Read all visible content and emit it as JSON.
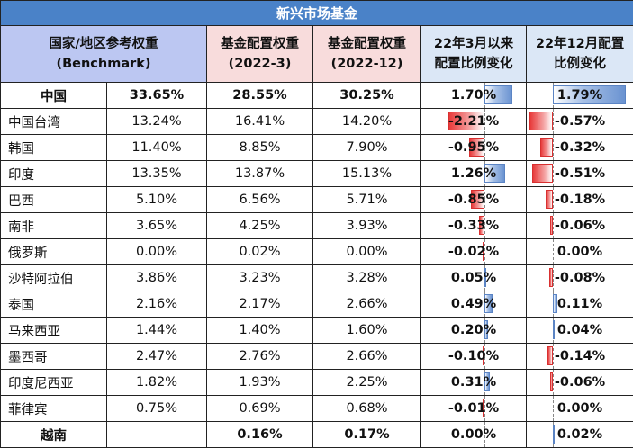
{
  "title": "新兴市场基金",
  "headers": {
    "benchmark": [
      "国家/地区参考权重",
      "(Benchmark)"
    ],
    "w2022_3": [
      "基金配置权重",
      "(2022-3)"
    ],
    "w2022_12": [
      "基金配置权重",
      "(2022-12)"
    ],
    "chg_mar": [
      "22年3月以来",
      "配置比例变化"
    ],
    "chg_dec": [
      "22年12月配置",
      "比例变化"
    ]
  },
  "rows": [
    {
      "country": "中国",
      "benchmark": "33.65%",
      "w2022_3": "28.55%",
      "w2022_12": "30.25%",
      "chg_mar": "1.70%",
      "chg_mar_v": 1.7,
      "chg_dec": "1.79%",
      "chg_dec_v": 1.79,
      "bold": true
    },
    {
      "country": "中国台湾",
      "benchmark": "13.24%",
      "w2022_3": "16.41%",
      "w2022_12": "14.20%",
      "chg_mar": "-2.21%",
      "chg_mar_v": -2.21,
      "chg_dec": "-0.57%",
      "chg_dec_v": -0.57
    },
    {
      "country": "韩国",
      "benchmark": "11.40%",
      "w2022_3": "8.85%",
      "w2022_12": "7.90%",
      "chg_mar": "-0.95%",
      "chg_mar_v": -0.95,
      "chg_dec": "-0.32%",
      "chg_dec_v": -0.32
    },
    {
      "country": "印度",
      "benchmark": "13.35%",
      "w2022_3": "13.87%",
      "w2022_12": "15.13%",
      "chg_mar": "1.26%",
      "chg_mar_v": 1.26,
      "chg_dec": "-0.51%",
      "chg_dec_v": -0.51
    },
    {
      "country": "巴西",
      "benchmark": "5.10%",
      "w2022_3": "6.56%",
      "w2022_12": "5.71%",
      "chg_mar": "-0.85%",
      "chg_mar_v": -0.85,
      "chg_dec": "-0.18%",
      "chg_dec_v": -0.18
    },
    {
      "country": "南非",
      "benchmark": "3.65%",
      "w2022_3": "4.25%",
      "w2022_12": "3.93%",
      "chg_mar": "-0.33%",
      "chg_mar_v": -0.33,
      "chg_dec": "-0.06%",
      "chg_dec_v": -0.06
    },
    {
      "country": "俄罗斯",
      "benchmark": "0.00%",
      "w2022_3": "0.02%",
      "w2022_12": "0.00%",
      "chg_mar": "-0.02%",
      "chg_mar_v": -0.02,
      "chg_dec": "0.00%",
      "chg_dec_v": 0.0
    },
    {
      "country": "沙特阿拉伯",
      "benchmark": "3.86%",
      "w2022_3": "3.23%",
      "w2022_12": "3.28%",
      "chg_mar": "0.05%",
      "chg_mar_v": 0.05,
      "chg_dec": "-0.08%",
      "chg_dec_v": -0.08
    },
    {
      "country": "泰国",
      "benchmark": "2.16%",
      "w2022_3": "2.17%",
      "w2022_12": "2.66%",
      "chg_mar": "0.49%",
      "chg_mar_v": 0.49,
      "chg_dec": "0.11%",
      "chg_dec_v": 0.11
    },
    {
      "country": "马来西亚",
      "benchmark": "1.44%",
      "w2022_3": "1.40%",
      "w2022_12": "1.60%",
      "chg_mar": "0.20%",
      "chg_mar_v": 0.2,
      "chg_dec": "0.04%",
      "chg_dec_v": 0.04
    },
    {
      "country": "墨西哥",
      "benchmark": "2.47%",
      "w2022_3": "2.76%",
      "w2022_12": "2.66%",
      "chg_mar": "-0.10%",
      "chg_mar_v": -0.1,
      "chg_dec": "-0.14%",
      "chg_dec_v": -0.14
    },
    {
      "country": "印度尼西亚",
      "benchmark": "1.82%",
      "w2022_3": "1.93%",
      "w2022_12": "2.25%",
      "chg_mar": "0.31%",
      "chg_mar_v": 0.31,
      "chg_dec": "-0.06%",
      "chg_dec_v": -0.06
    },
    {
      "country": "菲律宾",
      "benchmark": "0.75%",
      "w2022_3": "0.69%",
      "w2022_12": "0.68%",
      "chg_mar": "-0.01%",
      "chg_mar_v": -0.01,
      "chg_dec": "0.00%",
      "chg_dec_v": 0.0
    },
    {
      "country": "越南",
      "benchmark": "",
      "w2022_3": "0.16%",
      "w2022_12": "0.17%",
      "chg_mar": "0.00%",
      "chg_mar_v": 0.0,
      "chg_dec": "0.02%",
      "chg_dec_v": 0.02,
      "bold": true
    }
  ],
  "colors": {
    "title_bg": "#4a82c8",
    "bench_header_bg": "#bcc7f2",
    "weight_header_bg": "#f8dcdc",
    "change_header_bg": "#dbe7f6",
    "positive_bar": "#6a93d1",
    "negative_bar": "#e83b3b"
  }
}
